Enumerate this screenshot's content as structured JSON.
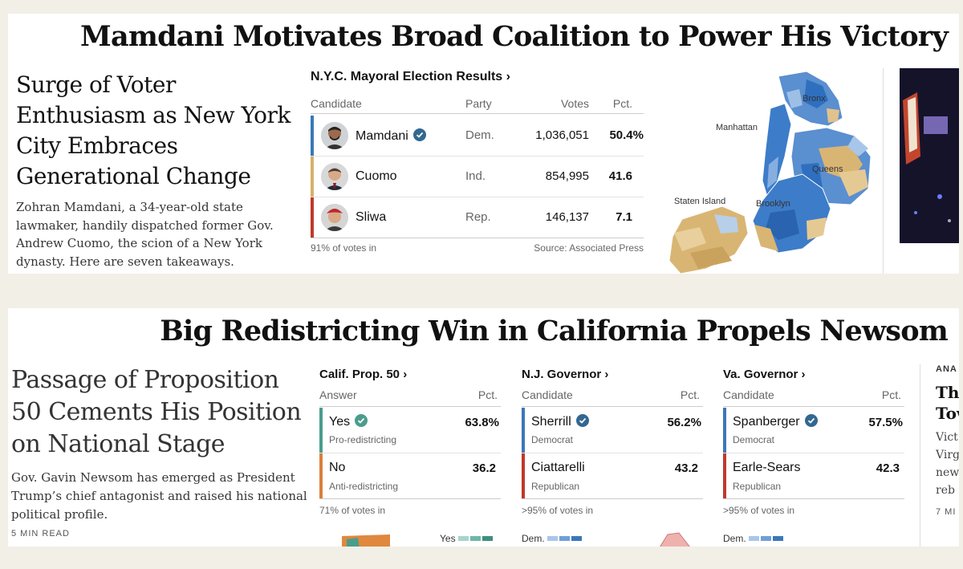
{
  "top": {
    "banner": "Mamdani Motivates Broad Coalition to Power His Victory",
    "headline": "Surge of Voter Enthusiasm as New York City Embraces Generational Change",
    "summary": "Zohran Mamdani, a 34-year-old state lawmaker, handily dispatched former Gov. Andrew Cuomo, the scion of a New York dynasty. Here are seven takeaways.",
    "results": {
      "title": "N.Y.C. Mayoral Election Results ›",
      "headers": {
        "candidate": "Candidate",
        "party": "Party",
        "votes": "Votes",
        "pct": "Pct."
      },
      "rows": [
        {
          "name": "Mamdani",
          "party": "Dem.",
          "votes": "1,036,051",
          "pct": "50.4%",
          "color": "#3a78b8",
          "winner": true
        },
        {
          "name": "Cuomo",
          "party": "Ind.",
          "votes": "854,995",
          "pct": "41.6",
          "color": "#d6b06b",
          "winner": false
        },
        {
          "name": "Sliwa",
          "party": "Rep.",
          "votes": "146,137",
          "pct": "7.1",
          "color": "#c0392b",
          "winner": false
        }
      ],
      "footer_left": "91% of votes in",
      "footer_right": "Source: Associated Press"
    },
    "map_labels": {
      "bronx": "Bronx",
      "manhattan": "Manhattan",
      "queens": "Queens",
      "staten_island": "Staten Island",
      "brooklyn": "Brooklyn"
    }
  },
  "bottom": {
    "banner": "Big Redistricting Win in California Propels Newsom",
    "headline": "Passage of Proposition 50 Cements His Position on National Stage",
    "summary": "Gov. Gavin Newsom has emerged as President Trump’s chief antagonist and raised his national political profile.",
    "read_time": "5 MIN READ",
    "races": [
      {
        "title": "Calif. Prop. 50 ›",
        "col1": "Answer",
        "col2": "Pct.",
        "rows": [
          {
            "name": "Yes",
            "sub": "Pro-redistricting",
            "pct": "63.8%",
            "color": "#4b9c8d",
            "winner": true
          },
          {
            "name": "No",
            "sub": "Anti-redistricting",
            "pct": "36.2",
            "color": "#d9803a",
            "winner": false
          }
        ],
        "footer": "71% of votes in",
        "legend": "Yes"
      },
      {
        "title": "N.J. Governor ›",
        "col1": "Candidate",
        "col2": "Pct.",
        "rows": [
          {
            "name": "Sherrill",
            "sub": "Democrat",
            "pct": "56.2%",
            "color": "#3a78b8",
            "winner": true
          },
          {
            "name": "Ciattarelli",
            "sub": "Republican",
            "pct": "43.2",
            "color": "#c0392b",
            "winner": false
          }
        ],
        "footer": ">95% of votes in",
        "legend": "Dem."
      },
      {
        "title": "Va. Governor ›",
        "col1": "Candidate",
        "col2": "Pct.",
        "rows": [
          {
            "name": "Spanberger",
            "sub": "Democrat",
            "pct": "57.5%",
            "color": "#3a78b8",
            "winner": true
          },
          {
            "name": "Earle-Sears",
            "sub": "Republican",
            "pct": "42.3",
            "color": "#c0392b",
            "winner": false
          }
        ],
        "footer": ">95% of votes in",
        "legend": "Dem."
      }
    ],
    "side": {
      "kicker": "ANA",
      "title1": "The",
      "title2": "Tow",
      "lines": [
        "Vict",
        "Virg",
        "new",
        "reb"
      ],
      "meta": "7 MI"
    }
  },
  "colors": {
    "dem": "#3a78b8",
    "ind": "#d6b06b",
    "rep": "#c0392b",
    "verified": "#326891"
  }
}
